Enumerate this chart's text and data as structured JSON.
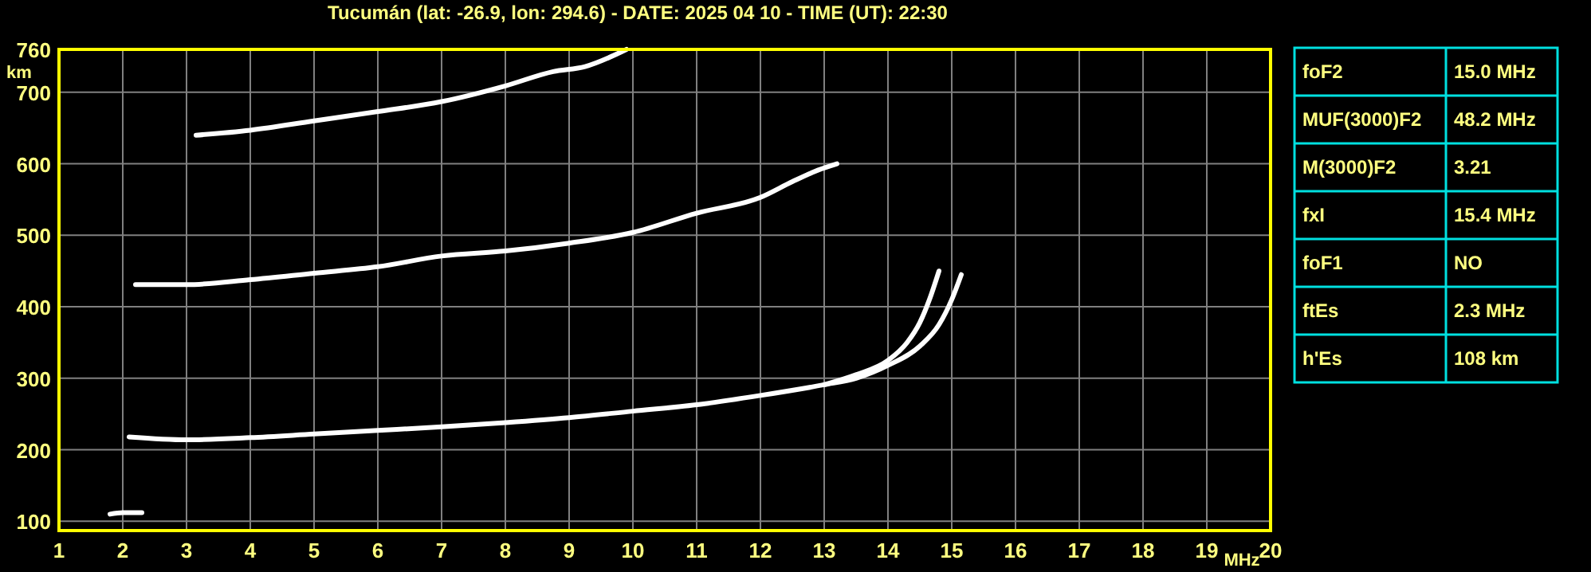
{
  "chart_data": [
    {
      "type": "line",
      "title": "Tucumán (lat: -26.9, lon: 294.6) - DATE: 2025 04 10 - TIME (UT): 22:30",
      "xlabel": "MHz",
      "ylabel": "km",
      "xlim": [
        1,
        20
      ],
      "xticks": [
        1,
        2,
        3,
        4,
        5,
        6,
        7,
        8,
        9,
        10,
        11,
        12,
        13,
        14,
        15,
        16,
        17,
        18,
        19,
        20
      ],
      "ylim": [
        87,
        760
      ],
      "yticks": [
        100,
        200,
        300,
        400,
        500,
        600,
        700,
        760
      ],
      "grid": true,
      "marker": "none",
      "line_style": "solid",
      "series": [
        {
          "color": "#ffffff",
          "x": [
            2.1,
            3,
            4,
            5,
            6,
            7,
            8,
            9,
            10,
            11,
            12,
            13,
            13.5,
            14,
            14.5,
            14.8,
            15.0,
            15.15
          ],
          "values": [
            218,
            214,
            217,
            222,
            227,
            232,
            238,
            245,
            254,
            263,
            276,
            291,
            300,
            318,
            345,
            375,
            410,
            445
          ]
        },
        {
          "color": "#ffffff",
          "x": [
            13,
            13.5,
            14,
            14.3,
            14.5,
            14.65,
            14.8
          ],
          "values": [
            291,
            305,
            325,
            350,
            378,
            410,
            450
          ]
        },
        {
          "color": "#ffffff",
          "x": [
            2.2,
            3,
            4,
            5,
            6,
            7,
            8,
            9,
            10,
            11,
            12,
            12.5,
            12.9,
            13.2
          ],
          "values": [
            431,
            431,
            438,
            447,
            456,
            471,
            478,
            489,
            504,
            531,
            553,
            575,
            591,
            600
          ]
        },
        {
          "color": "#ffffff",
          "x": [
            3.15,
            4,
            5,
            6,
            7,
            8,
            8.75,
            9.25,
            9.9
          ],
          "values": [
            640,
            647,
            660,
            673,
            687,
            709,
            729,
            736,
            760
          ]
        },
        {
          "color": "#ffffff",
          "x": [
            1.8,
            2.0,
            2.3
          ],
          "values": [
            110,
            112,
            112
          ]
        }
      ]
    },
    {
      "type": "other",
      "categories": [
        "foF2",
        "MUF(3000)F2",
        "M(3000)F2",
        "fxI",
        "foF1",
        "ftEs",
        "h'Es"
      ],
      "value_labels": [
        "15.0 MHz",
        "48.2 MHz",
        "3.21",
        "15.4 MHz",
        "NO",
        "2.3 MHz",
        "108 km"
      ]
    }
  ]
}
